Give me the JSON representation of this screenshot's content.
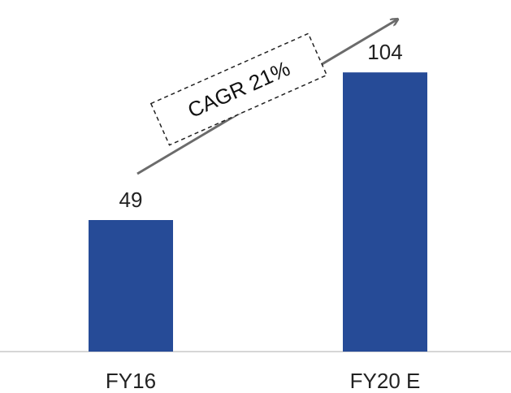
{
  "chart_data": {
    "type": "bar",
    "categories": [
      "FY16",
      "FY20 E"
    ],
    "values": [
      49,
      104
    ],
    "data_labels": [
      "49",
      "104"
    ],
    "annotation": "CAGR 21%",
    "title": "",
    "xlabel": "",
    "ylabel": "",
    "ylim": [
      0,
      120
    ],
    "grid": false,
    "legend": "none"
  },
  "colors": {
    "bar": "#264B97",
    "axis": "#c9c9c9",
    "arrow": "#6b6b6b",
    "text": "#222222"
  }
}
